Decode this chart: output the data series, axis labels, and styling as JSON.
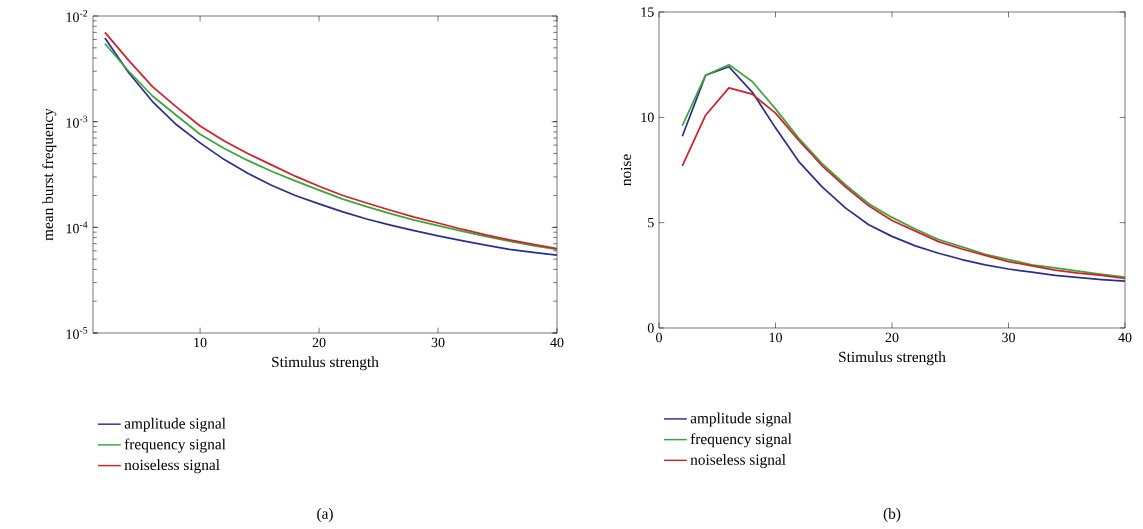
{
  "chart_data": [
    {
      "type": "line",
      "xlabel": "Stimulus strength",
      "ylabel": "mean burst frequency",
      "log": "y",
      "legend": "bottom",
      "annotations": [
        "(a)"
      ],
      "x": [
        2,
        4,
        6,
        8,
        10,
        12,
        14,
        16,
        18,
        20,
        22,
        24,
        26,
        28,
        30,
        32,
        34,
        36,
        38,
        40
      ],
      "xlim": [
        1,
        40
      ],
      "xticks": [
        10,
        20,
        30,
        40
      ],
      "ylim": [
        1e-05,
        0.01
      ],
      "yticks": [
        {
          "value": 1e-05,
          "label": "10$^{-5}$"
        },
        {
          "value": 0.0001,
          "label": "10$^{-4}$"
        },
        {
          "value": 0.001,
          "label": "10$^{-3}$"
        },
        {
          "value": 0.01,
          "label": "10$^{-2}$"
        }
      ],
      "series": [
        {
          "name": "amplitude signal",
          "color": "#2b2f8f",
          "values": [
            0.0062,
            0.0029,
            0.00155,
            0.00094,
            0.00063,
            0.00044,
            0.000325,
            0.00025,
            0.0002,
            0.000167,
            0.00014,
            0.00012,
            0.000105,
            9.3e-05,
            8.3e-05,
            7.5e-05,
            6.8e-05,
            6.2e-05,
            5.8e-05,
            5.45e-05
          ]
        },
        {
          "name": "frequency signal",
          "color": "#3aa63a",
          "values": [
            0.0055,
            0.003,
            0.00175,
            0.00115,
            0.00076,
            0.00056,
            0.00043,
            0.00034,
            0.000275,
            0.000225,
            0.000185,
            0.000157,
            0.000135,
            0.000117,
            0.000104,
            9.2e-05,
            8.2e-05,
            7.4e-05,
            6.7e-05,
            6.2e-05
          ]
        },
        {
          "name": "noiseless signal",
          "color": "#d42027",
          "values": [
            0.007,
            0.0038,
            0.00215,
            0.00138,
            0.00091,
            0.00066,
            0.0005,
            0.00039,
            0.000305,
            0.000245,
            0.0002,
            0.00017,
            0.000145,
            0.000125,
            0.00011,
            9.6e-05,
            8.5e-05,
            7.6e-05,
            6.9e-05,
            6.3e-05
          ]
        }
      ]
    },
    {
      "type": "line",
      "xlabel": "Stimulus strength",
      "ylabel": "noise",
      "legend": "bottom",
      "annotations": [
        "(b)"
      ],
      "x": [
        2,
        4,
        6,
        8,
        10,
        12,
        14,
        16,
        18,
        20,
        22,
        24,
        26,
        28,
        30,
        32,
        34,
        36,
        38,
        40
      ],
      "xlim": [
        0,
        40
      ],
      "xticks": [
        0,
        10,
        20,
        30,
        40
      ],
      "ylim": [
        0,
        15
      ],
      "yticks": [
        0,
        5,
        10,
        15
      ],
      "series": [
        {
          "name": "amplitude signal",
          "color": "#2b2f8f",
          "values": [
            9.1,
            12.0,
            12.4,
            11.2,
            9.5,
            7.9,
            6.7,
            5.7,
            4.9,
            4.35,
            3.9,
            3.55,
            3.25,
            3.0,
            2.8,
            2.65,
            2.5,
            2.4,
            2.3,
            2.22
          ]
        },
        {
          "name": "frequency signal",
          "color": "#3aa63a",
          "values": [
            9.6,
            12.0,
            12.5,
            11.7,
            10.4,
            9.0,
            7.8,
            6.8,
            5.9,
            5.25,
            4.7,
            4.2,
            3.85,
            3.5,
            3.25,
            3.0,
            2.85,
            2.7,
            2.55,
            2.41
          ]
        },
        {
          "name": "noiseless signal",
          "color": "#d42027",
          "values": [
            7.7,
            10.1,
            11.4,
            11.1,
            10.2,
            8.9,
            7.7,
            6.7,
            5.8,
            5.1,
            4.6,
            4.1,
            3.75,
            3.45,
            3.15,
            2.95,
            2.75,
            2.6,
            2.5,
            2.35
          ]
        }
      ]
    }
  ]
}
